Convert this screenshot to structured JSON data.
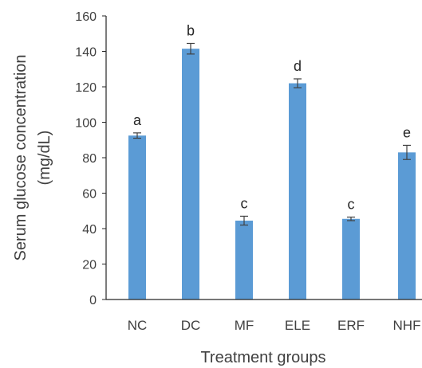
{
  "chart_data": {
    "type": "bar",
    "title": "",
    "xlabel": "Treatment groups",
    "ylabel_line1": "Serum glucose concentration",
    "ylabel_line2": "(mg/dL)",
    "categories": [
      "NC",
      "DC",
      "MF",
      "ELE",
      "ERF",
      "NHF"
    ],
    "values": [
      92.5,
      141.5,
      44.5,
      122,
      45.5,
      83
    ],
    "errors": [
      1.5,
      3,
      2.5,
      2.5,
      1,
      4
    ],
    "significance_labels": [
      "a",
      "b",
      "c",
      "d",
      "c",
      "e"
    ],
    "ylim": [
      0,
      160
    ],
    "yticks": [
      "0",
      "20",
      "40",
      "60",
      "80",
      "100",
      "120",
      "140",
      "160"
    ],
    "grid": false,
    "legend": "none",
    "bar_color": "#5B9BD5",
    "error_bar_color": "#404040"
  }
}
